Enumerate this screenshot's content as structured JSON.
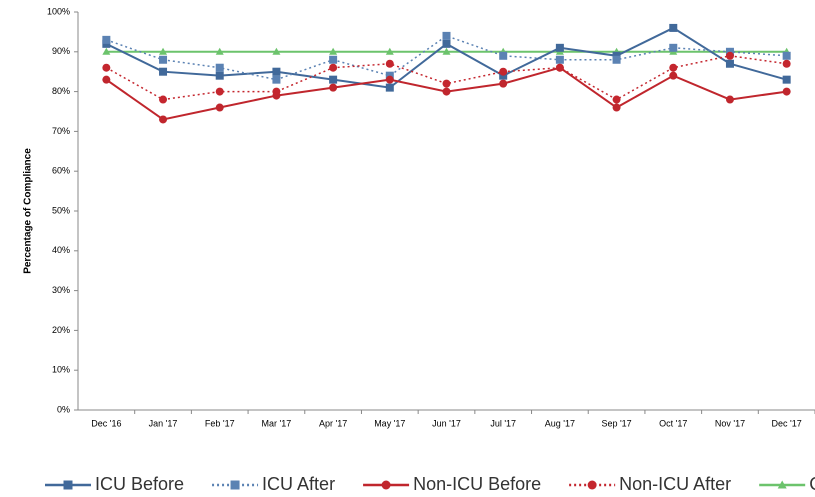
{
  "chart_data": {
    "type": "line",
    "y_label": "Percentage of Compliance",
    "categories": [
      "Dec '16",
      "Jan '17",
      "Feb '17",
      "Mar '17",
      "Apr '17",
      "May '17",
      "Jun '17",
      "Jul '17",
      "Aug '17",
      "Sep '17",
      "Oct '17",
      "Nov '17",
      "Dec '17"
    ],
    "series": [
      {
        "name": "Goal",
        "color": "#6cc36c",
        "dash": "solid",
        "marker": "triangle",
        "values": [
          90,
          90,
          90,
          90,
          90,
          90,
          90,
          90,
          90,
          90,
          90,
          90,
          90
        ]
      },
      {
        "name": "ICU Before",
        "color": "#41699a",
        "dash": "solid",
        "marker": "square",
        "values": [
          92,
          85,
          84,
          85,
          83,
          81,
          92,
          84,
          91,
          89,
          96,
          87,
          83
        ]
      },
      {
        "name": "ICU After",
        "color": "#5b82b3",
        "dash": "dotted",
        "marker": "square",
        "values": [
          93,
          88,
          86,
          83,
          88,
          84,
          94,
          89,
          88,
          88,
          91,
          90,
          89
        ]
      },
      {
        "name": "Non-ICU Before",
        "color": "#c0262d",
        "dash": "solid",
        "marker": "circle",
        "values": [
          83,
          73,
          76,
          79,
          81,
          83,
          80,
          82,
          86,
          76,
          84,
          78,
          80
        ]
      },
      {
        "name": "Non-ICU After",
        "color": "#c4262e",
        "dash": "dotted",
        "marker": "circle",
        "values": [
          86,
          78,
          80,
          80,
          86,
          87,
          82,
          85,
          86,
          78,
          86,
          89,
          87
        ]
      }
    ],
    "legend_order": [
      1,
      2,
      3,
      4,
      0
    ],
    "ylim": [
      0,
      100
    ],
    "yticks": [
      {
        "value": 0,
        "label": "0%"
      },
      {
        "value": 10,
        "label": "10%"
      },
      {
        "value": 20,
        "label": "20%"
      },
      {
        "value": 30,
        "label": "30%"
      },
      {
        "value": 40,
        "label": "40%"
      },
      {
        "value": 50,
        "label": "50%"
      },
      {
        "value": 60,
        "label": "60%"
      },
      {
        "value": 70,
        "label": "70%"
      },
      {
        "value": 80,
        "label": "80%"
      },
      {
        "value": 90,
        "label": "90%"
      },
      {
        "value": 100,
        "label": "100%"
      }
    ],
    "grid": false,
    "legend": "bottom"
  }
}
